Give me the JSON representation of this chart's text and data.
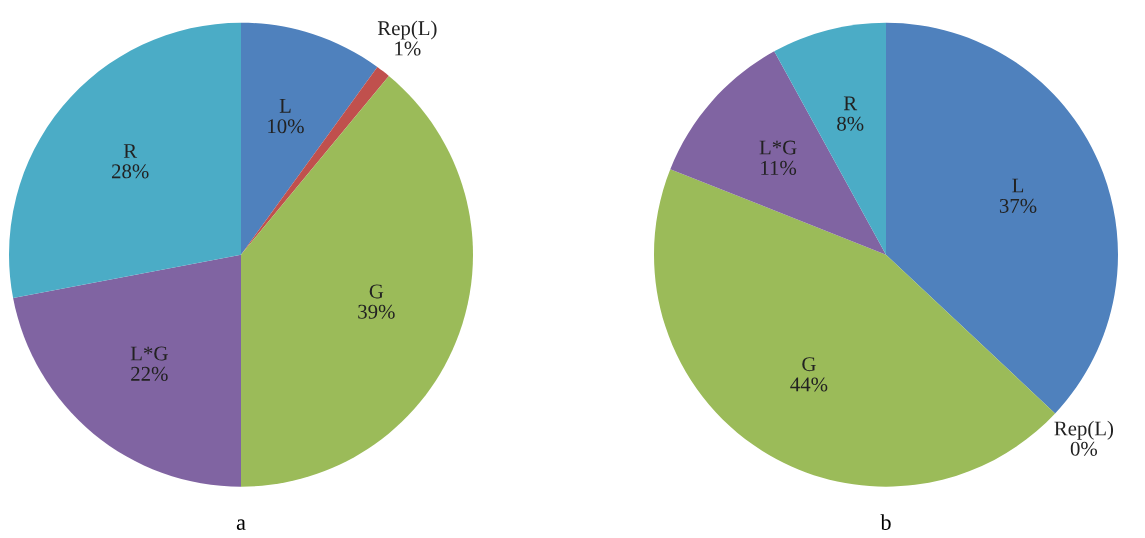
{
  "chart_data": [
    {
      "type": "pie",
      "xlabel": "a",
      "categories": [
        "L",
        "Rep(L)",
        "G",
        "L*G",
        "R"
      ],
      "values": [
        10,
        1,
        39,
        22,
        28
      ],
      "value_labels": [
        "10%",
        "1%",
        "39%",
        "22%",
        "28%"
      ],
      "colors": [
        "#4f81bd",
        "#c0504d",
        "#9bbb59",
        "#8064a2",
        "#4bacc6"
      ]
    },
    {
      "type": "pie",
      "xlabel": "b",
      "categories": [
        "L",
        "Rep(L)",
        "G",
        "L*G",
        "R"
      ],
      "values": [
        37,
        0,
        44,
        11,
        8
      ],
      "value_labels": [
        "37%",
        "0%",
        "44%",
        "11%",
        "8%"
      ],
      "colors": [
        "#4f81bd",
        "#c0504d",
        "#9bbb59",
        "#8064a2",
        "#4bacc6"
      ]
    }
  ]
}
